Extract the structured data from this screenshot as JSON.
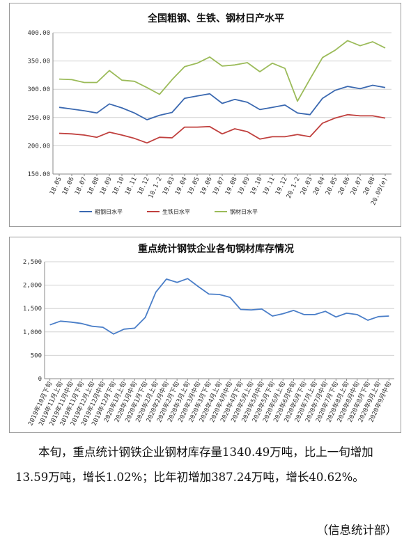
{
  "chart_data": [
    {
      "type": "line",
      "title": "全国粗钢、生铁、钢材日产水平",
      "ylim": [
        150,
        400
      ],
      "yticks": [
        "400.00",
        "350.00",
        "300.00",
        "250.00",
        "200.00",
        "150.00"
      ],
      "categories": [
        "18.05",
        "18.06",
        "18.07",
        "18.08",
        "18.09",
        "18.10",
        "18.11",
        "18.12",
        "18.1-2",
        "19.03",
        "19.04",
        "19.05",
        "19.06",
        "19.07",
        "19.08",
        "19.09",
        "19.10",
        "19.11",
        "19.12",
        "20.1-2",
        "20.03",
        "20.04",
        "20.05",
        "20.06",
        "20.07",
        "20.08",
        "20.09(e)"
      ],
      "series": [
        {
          "name": "粗钢日水平",
          "color": "#3a68b0",
          "values": [
            268,
            265,
            262,
            258,
            274,
            267,
            258,
            246,
            254,
            259,
            284,
            288,
            292,
            275,
            282,
            277,
            264,
            268,
            272,
            258,
            255,
            284,
            298,
            305,
            301,
            307,
            303
          ]
        },
        {
          "name": "生铁日水平",
          "color": "#c0403e",
          "values": [
            222,
            221,
            219,
            215,
            224,
            219,
            213,
            205,
            215,
            214,
            233,
            233,
            234,
            221,
            230,
            225,
            212,
            216,
            216,
            220,
            216,
            240,
            249,
            255,
            253,
            253,
            249
          ]
        },
        {
          "name": "钢材日水平",
          "color": "#9bbb59",
          "values": [
            318,
            317,
            312,
            312,
            333,
            316,
            314,
            303,
            291,
            317,
            340,
            346,
            357,
            341,
            343,
            347,
            331,
            346,
            337,
            279,
            318,
            356,
            369,
            386,
            377,
            384,
            373
          ]
        }
      ],
      "legend": "bottom"
    },
    {
      "type": "line",
      "title": "重点统计钢铁企业各旬钢材库存情况",
      "ylim": [
        0,
        2500
      ],
      "yticks": [
        "2,500",
        "2,000",
        "1,500",
        "1,000",
        "500",
        "0"
      ],
      "categories": [
        "2019年10月下旬",
        "2019年11月上旬",
        "2019年11月中旬",
        "2019年11月下旬",
        "2019年12月上旬",
        "2019年12月中旬",
        "2019年12月下旬",
        "2020年1月上旬",
        "2020年1月中旬",
        "2020年1月下旬",
        "2020年2月上旬",
        "2020年2月中旬",
        "2020年2月下旬",
        "2020年3月上旬",
        "2020年3月中旬",
        "2020年3月下旬",
        "2020年4月上旬",
        "2020年4月中旬",
        "2020年4月下旬",
        "2020年5月上旬",
        "2020年5月中旬",
        "2020年5月下旬",
        "2020年6月上旬",
        "2020年6月中旬",
        "2020年6月下旬",
        "2020年7月上旬",
        "2020年7月中旬",
        "2020年7月下旬",
        "2020年8月上旬",
        "2020年8月中旬",
        "2020年8月下旬",
        "2020年9月上旬",
        "2020年9月中旬"
      ],
      "series": [
        {
          "name": "",
          "color": "#4a7ec8",
          "values": [
            1150,
            1230,
            1210,
            1180,
            1120,
            1100,
            955,
            1060,
            1080,
            1310,
            1850,
            2130,
            2060,
            2140,
            1970,
            1810,
            1800,
            1740,
            1480,
            1470,
            1490,
            1340,
            1390,
            1460,
            1370,
            1370,
            1440,
            1320,
            1400,
            1370,
            1250,
            1327,
            1340
          ]
        }
      ]
    }
  ],
  "text": {
    "paragraph": "本旬，重点统计钢铁企业钢材库存量1340.49万吨，比上一旬增加13.59万吨，增长1.02%；比年初增加387.24万吨，增长40.62%。",
    "source": "（信息统计部）"
  }
}
